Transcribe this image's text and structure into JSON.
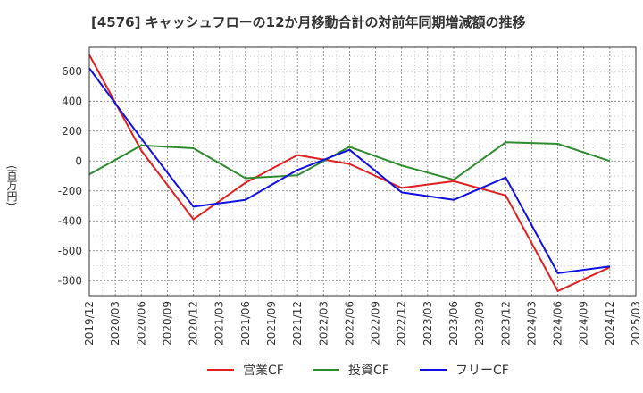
{
  "title": "[4576]  キャッシュフローの12か月移動合計の対前年同期増減額の推移",
  "ylabel": "(百万円)",
  "chart_data": {
    "type": "line",
    "x": [
      "2019/12",
      "2020/03",
      "2020/06",
      "2020/09",
      "2020/12",
      "2021/03",
      "2021/06",
      "2021/09",
      "2021/12",
      "2022/03",
      "2022/06",
      "2022/09",
      "2022/12",
      "2023/03",
      "2023/06",
      "2023/09",
      "2023/12",
      "2024/03",
      "2024/06",
      "2024/09",
      "2024/12",
      "2025/03"
    ],
    "yticks": [
      600,
      400,
      200,
      0,
      -200,
      -400,
      -600,
      -800
    ],
    "ylim": [
      -900,
      760
    ],
    "grid": true,
    "legend_position": "bottom",
    "series": [
      {
        "name": "営業CF",
        "color": "#e02020",
        "points": [
          [
            "2019/12",
            710
          ],
          [
            "2020/06",
            70
          ],
          [
            "2020/12",
            -390
          ],
          [
            "2021/06",
            -145
          ],
          [
            "2021/12",
            40
          ],
          [
            "2022/06",
            -20
          ],
          [
            "2022/12",
            -180
          ],
          [
            "2023/06",
            -135
          ],
          [
            "2023/12",
            -230
          ],
          [
            "2024/06",
            -870
          ],
          [
            "2024/12",
            -710
          ]
        ]
      },
      {
        "name": "投資CF",
        "color": "#2e8b2e",
        "points": [
          [
            "2019/12",
            -90
          ],
          [
            "2020/06",
            105
          ],
          [
            "2020/12",
            85
          ],
          [
            "2021/06",
            -115
          ],
          [
            "2021/12",
            -95
          ],
          [
            "2022/06",
            95
          ],
          [
            "2022/12",
            -30
          ],
          [
            "2023/06",
            -125
          ],
          [
            "2023/12",
            125
          ],
          [
            "2024/06",
            115
          ],
          [
            "2024/12",
            0
          ]
        ]
      },
      {
        "name": "フリーCF",
        "color": "#1010e0",
        "points": [
          [
            "2019/12",
            620
          ],
          [
            "2020/06",
            150
          ],
          [
            "2020/12",
            -305
          ],
          [
            "2021/06",
            -260
          ],
          [
            "2021/12",
            -60
          ],
          [
            "2022/06",
            75
          ],
          [
            "2022/12",
            -210
          ],
          [
            "2023/06",
            -260
          ],
          [
            "2023/12",
            -110
          ],
          [
            "2024/06",
            -750
          ],
          [
            "2024/12",
            -705
          ]
        ]
      }
    ]
  }
}
